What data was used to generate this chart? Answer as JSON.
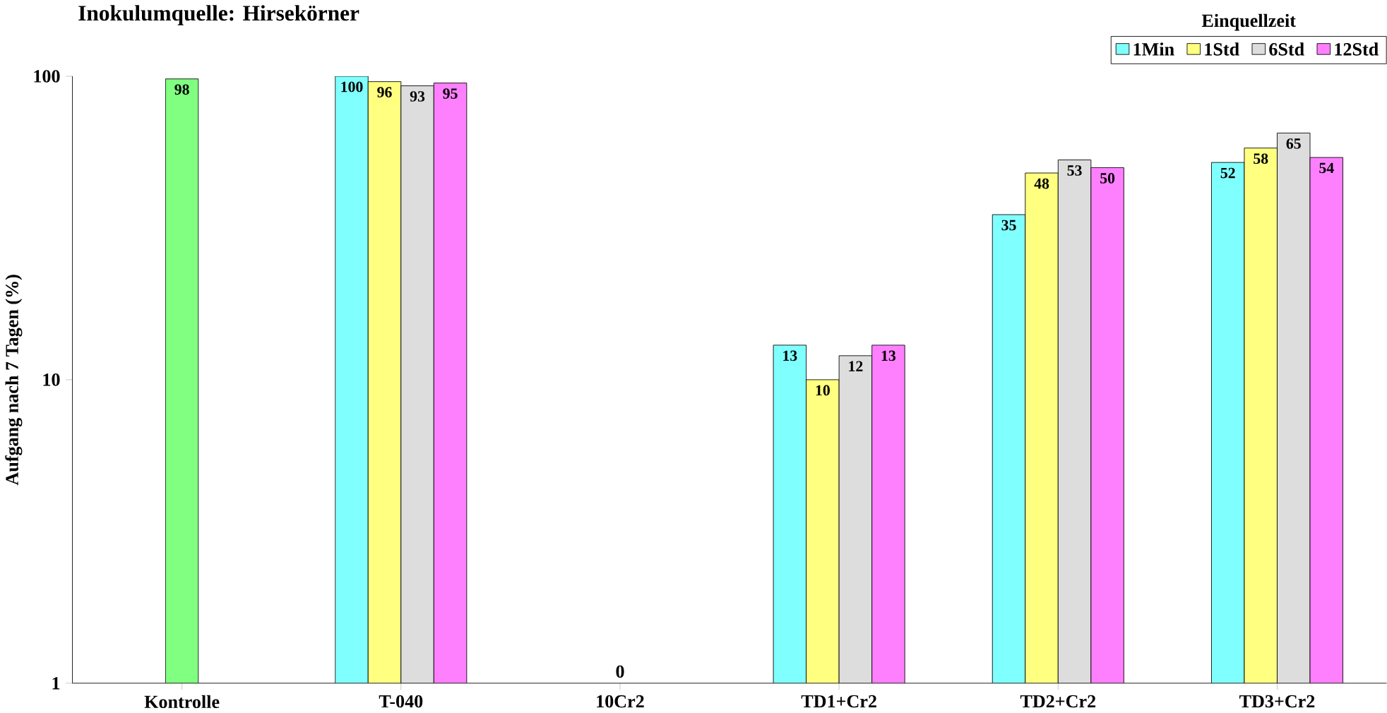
{
  "chart_data": {
    "type": "bar",
    "title": "Inokulumquelle: Hirsekörner",
    "ylabel": "Aufgang nach 7 Tagen (%)",
    "legend_title": "Einquellzeit",
    "categories": [
      "Kontrolle",
      "T-040",
      "10Cr2",
      "TD1+Cr2",
      "TD2+Cr2",
      "TD3+Cr2"
    ],
    "series": [
      {
        "color": "#80ff80",
        "values": [
          98,
          null,
          null,
          null,
          null,
          null
        ]
      },
      {
        "name": "1Min",
        "color": "#80ffff",
        "values": [
          null,
          100,
          null,
          13,
          35,
          52
        ]
      },
      {
        "name": "1Std",
        "color": "#ffff80",
        "values": [
          null,
          96,
          null,
          10,
          48,
          58
        ]
      },
      {
        "name": "6Std",
        "color": "#dddddd",
        "values": [
          null,
          93,
          null,
          12,
          53,
          65
        ]
      },
      {
        "name": "12Std",
        "color": "#ff80ff",
        "values": [
          null,
          95,
          null,
          13,
          50,
          54
        ]
      }
    ],
    "log": "y",
    "ylim": [
      1,
      100
    ],
    "yticks": [
      1,
      10,
      100
    ],
    "data_labels": true,
    "legend": "top right",
    "grid": false,
    "annotations": [
      "0"
    ]
  }
}
